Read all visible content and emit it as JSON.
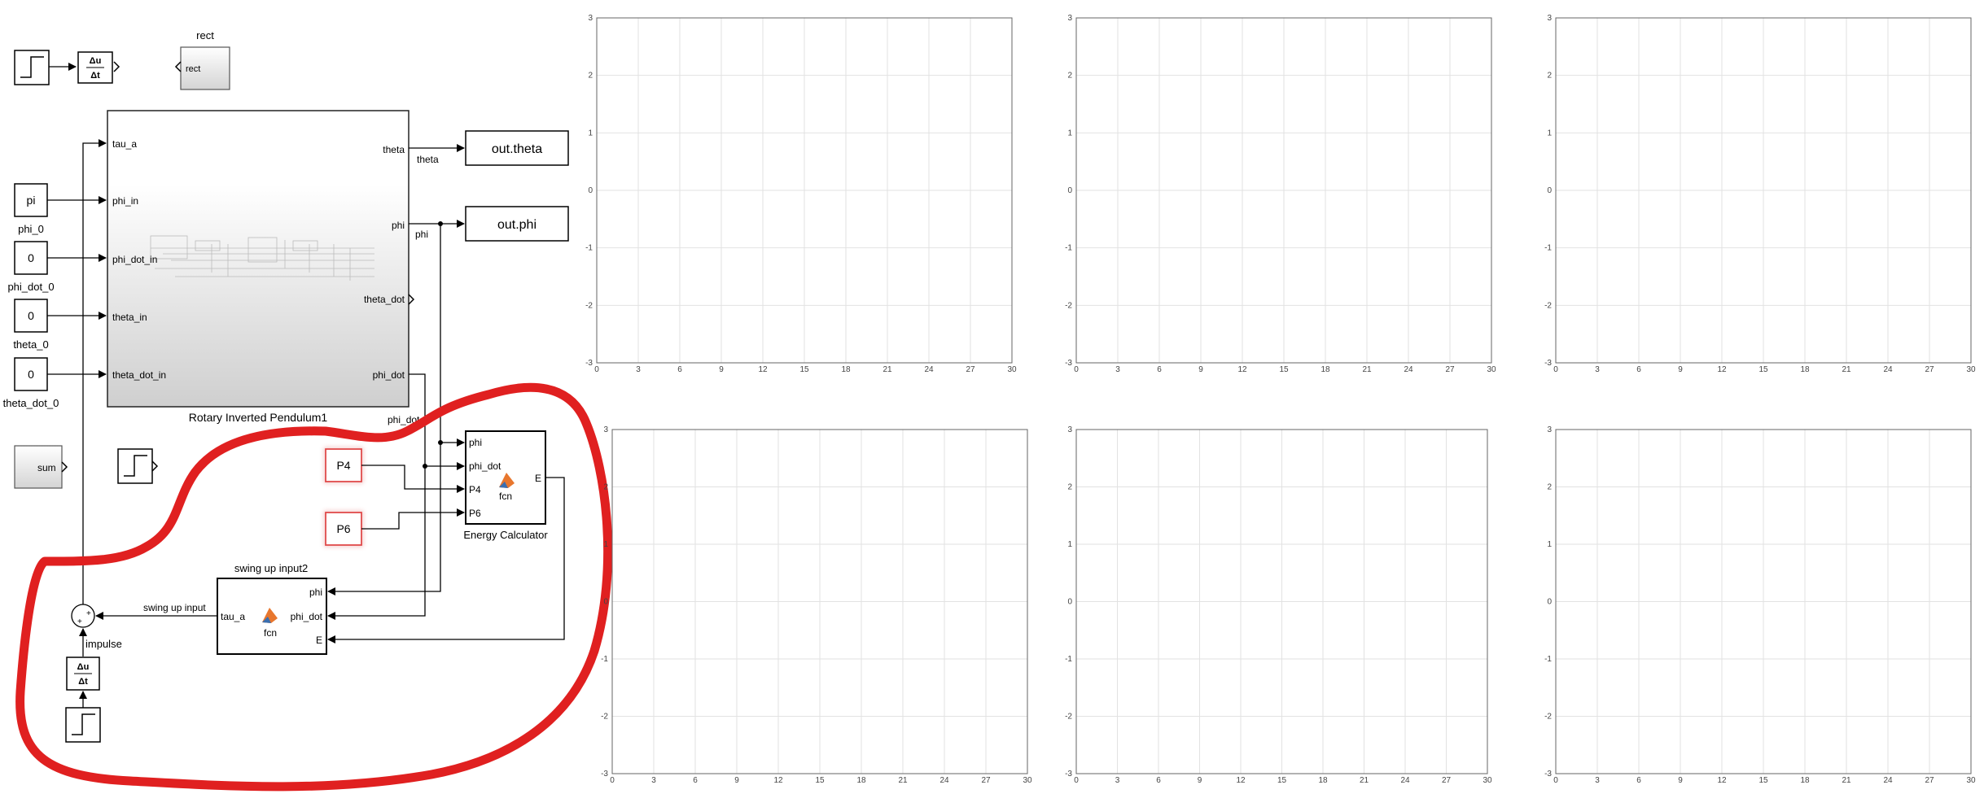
{
  "blocks": {
    "rect": {
      "title": "rect",
      "port": "rect"
    },
    "derivative": {
      "num": "Δu",
      "den": "Δt"
    },
    "phi_0": {
      "value": "pi",
      "name": "phi_0"
    },
    "phi_dot_0": {
      "value": "0",
      "name": "phi_dot_0"
    },
    "theta_0": {
      "value": "0",
      "name": "theta_0"
    },
    "theta_dot_0": {
      "value": "0",
      "name": "theta_dot_0"
    },
    "sum_block": {
      "label": "sum"
    },
    "pendulum": {
      "name": "Rotary Inverted Pendulum1",
      "inputs": [
        "tau_a",
        "phi_in",
        "phi_dot_in",
        "theta_in",
        "theta_dot_in"
      ],
      "outputs": [
        "theta",
        "phi",
        "theta_dot",
        "phi_dot"
      ]
    },
    "out_theta": {
      "label": "out.theta"
    },
    "out_phi": {
      "label": "out.phi"
    },
    "P4": {
      "label": "P4"
    },
    "P6": {
      "label": "P6"
    },
    "energy": {
      "name": "Energy Calculator",
      "inputs": [
        "phi",
        "phi_dot",
        "P4",
        "P6"
      ],
      "output": "E",
      "fcn": "fcn"
    },
    "swing": {
      "title": "swing up input2",
      "inputs": [
        "phi",
        "phi_dot",
        "E"
      ],
      "output": "tau_a",
      "fcn": "fcn"
    },
    "impulse": {
      "label": "impulse"
    },
    "sum_signs": {
      "a": "+",
      "b": "+"
    }
  },
  "signals": {
    "theta": "theta",
    "phi": "phi",
    "phi_dot": "phi_dot",
    "swing_up_input": "swing up input"
  },
  "plots": {
    "x_ticks": [
      "0",
      "3",
      "6",
      "9",
      "12",
      "15",
      "18",
      "21",
      "24",
      "27",
      "30"
    ],
    "y_ticks": [
      "3",
      "2",
      "1",
      "0",
      "-1",
      "-2",
      "-3"
    ],
    "xlim": [
      0,
      30
    ],
    "ylim": [
      -3,
      3
    ],
    "count": 6
  },
  "colors": {
    "annotation": "#e02020",
    "highlight": "#e04848"
  }
}
